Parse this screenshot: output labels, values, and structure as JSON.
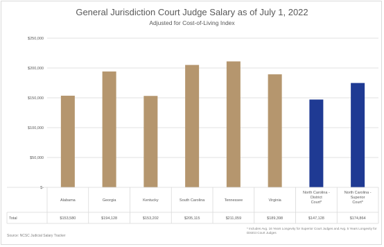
{
  "chart_data": {
    "type": "bar",
    "title": "General Jurisdiction Court Judge Salary as of July 1, 2022",
    "subtitle": "Adjusted for Cost-of-Living Index",
    "categories": [
      "Alabama",
      "Georgia",
      "Kentucky",
      "South Carolina",
      "Tennessee",
      "Virginia",
      "North Carolina - District Court*",
      "North Carolina - Superior Court*"
    ],
    "series": [
      {
        "name": "Total",
        "values": [
          153580,
          194128,
          153202,
          205115,
          211059,
          189398,
          147128,
          174864
        ]
      }
    ],
    "value_labels": [
      "$153,580",
      "$194,128",
      "$153,202",
      "$205,115",
      "$211,059",
      "$189,398",
      "$147,128",
      "$174,864"
    ],
    "bar_colors": [
      "#b5966e",
      "#b5966e",
      "#b5966e",
      "#b5966e",
      "#b5966e",
      "#b5966e",
      "#1f3a93",
      "#1f3a93"
    ],
    "ylim": [
      0,
      250000
    ],
    "yticks": [
      0,
      50000,
      100000,
      150000,
      200000,
      250000
    ],
    "ytick_labels": [
      "$-",
      "$50,000",
      "$100,000",
      "$150,000",
      "$200,000",
      "$250,000"
    ],
    "table_row_label": "Total",
    "grid": true,
    "source": "Source: NCSC Judicial Salary Tracker",
    "footnote": "* Includes Avg. 16 Years Longevity for Superior Court Judges and Avg. 5 Years Longevity for District Court Judges"
  },
  "colors": {
    "tan": "#b5966e",
    "navy": "#1f3a93",
    "grid": "#d9d9d9",
    "text": "#595959"
  }
}
